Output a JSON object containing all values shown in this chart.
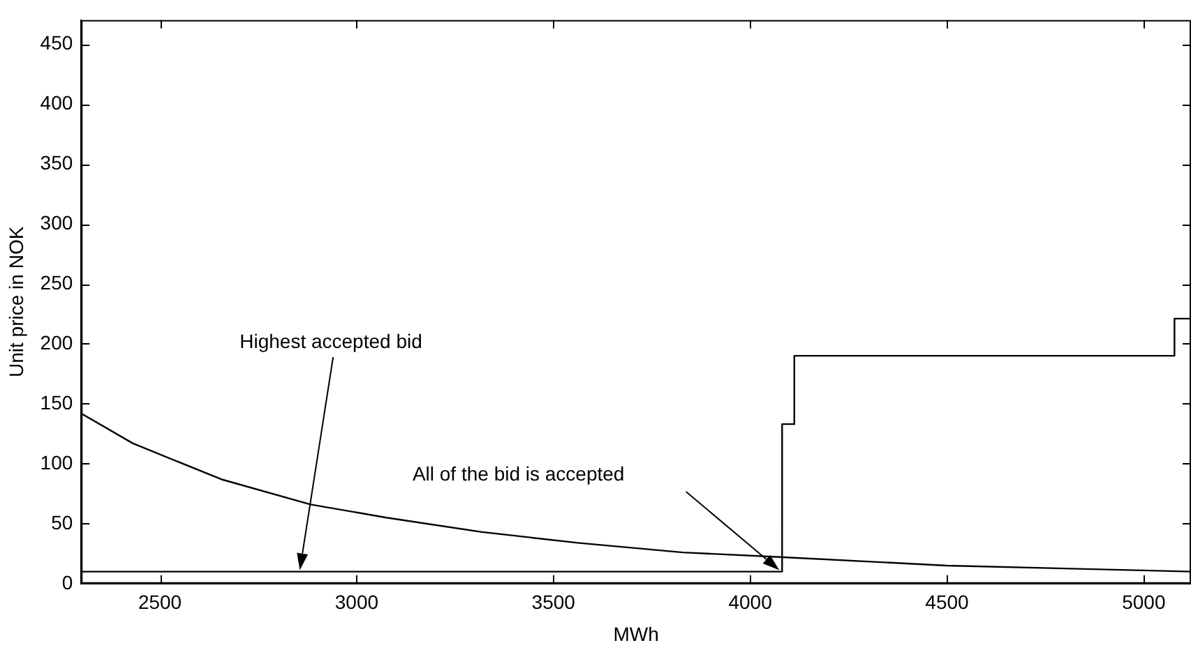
{
  "chart_data": {
    "type": "line",
    "xlabel": "MWh",
    "ylabel": "Unit price in NOK",
    "xlim": [
      2300,
      5120
    ],
    "xticks": [
      2500,
      3000,
      3500,
      4000,
      4500,
      5000
    ],
    "ylim": [
      0,
      470
    ],
    "yticks": [
      0,
      50,
      100,
      150,
      200,
      250,
      300,
      350,
      400,
      450
    ],
    "grid": false,
    "legend": false,
    "marker": "none",
    "series": [
      {
        "type": "line",
        "color": "#000000",
        "x": [
          2300,
          2431,
          2656,
          2883,
          3076,
          3319,
          3562,
          3829,
          4085,
          4500,
          5000,
          5120
        ],
        "values": [
          142,
          117,
          87,
          66,
          55,
          43,
          34,
          26,
          22,
          15,
          11,
          10
        ]
      },
      {
        "type": "step",
        "color": "#000000",
        "x": [
          2300,
          4081,
          4112,
          5078,
          5120
        ],
        "values": [
          10,
          133,
          190,
          221,
          221
        ]
      }
    ],
    "annotations": [
      "Highest accepted bid",
      "All of the bid is accepted"
    ]
  }
}
